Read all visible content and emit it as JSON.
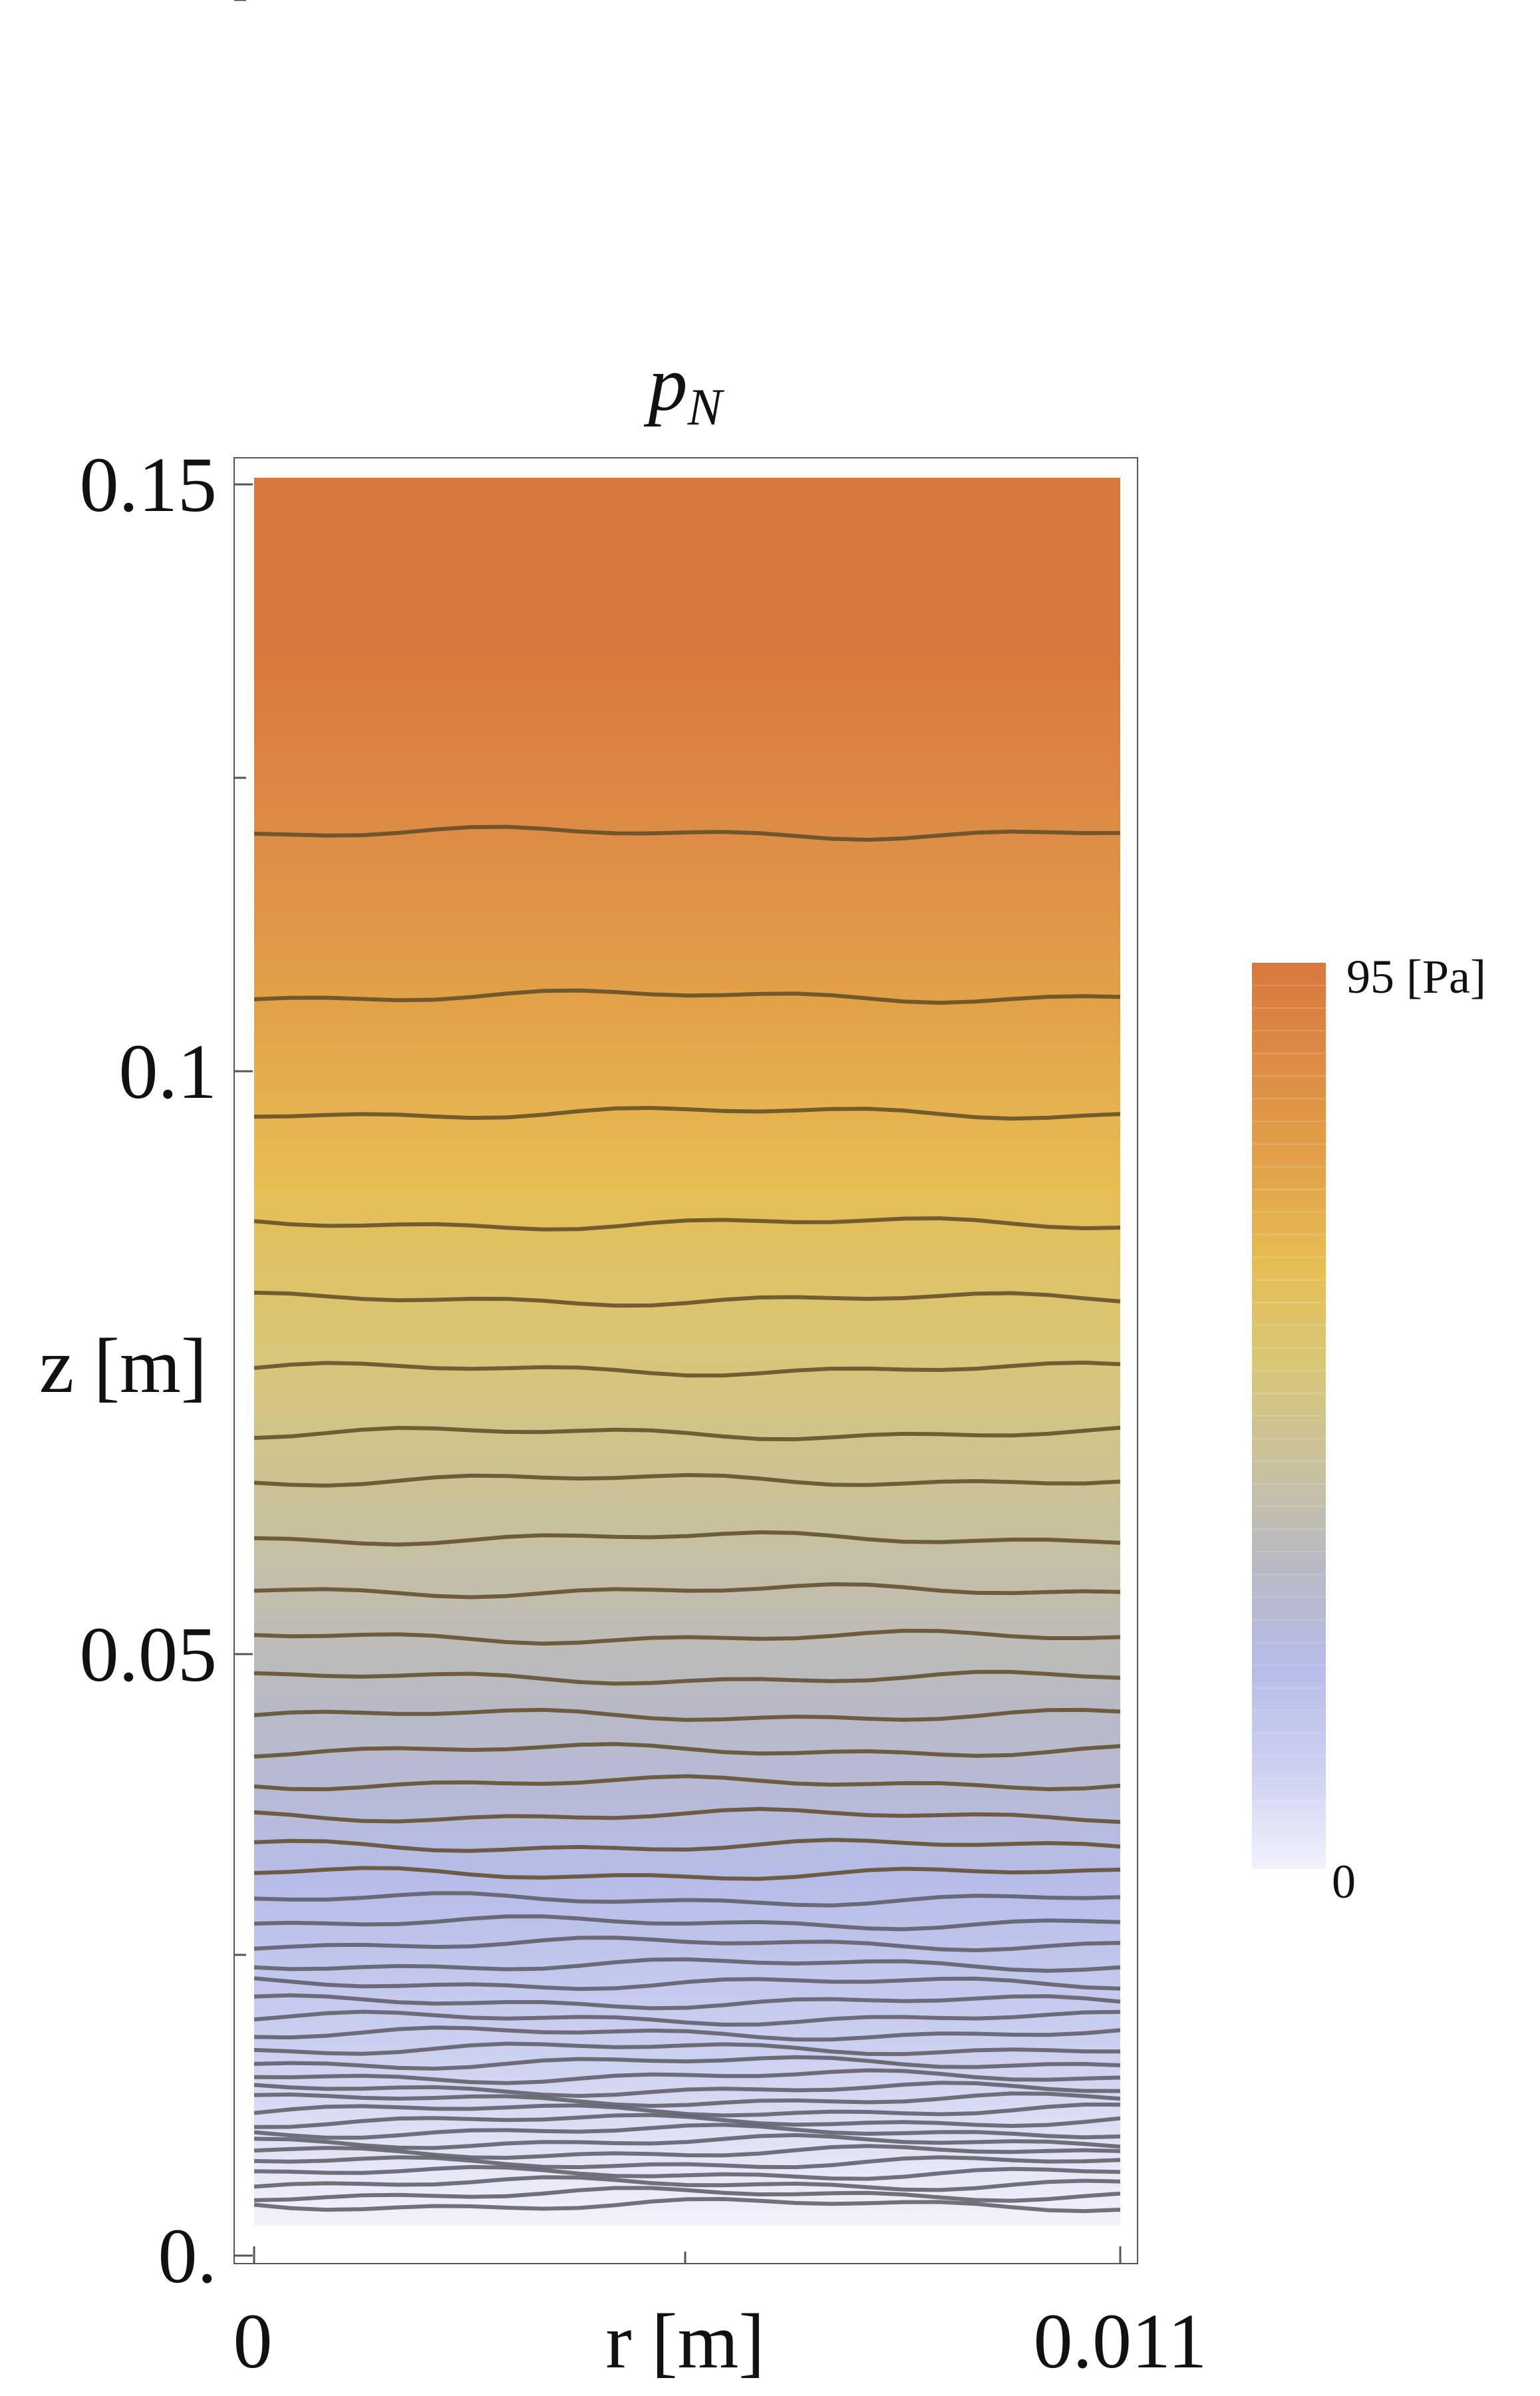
{
  "chart_data": {
    "type": "heatmap",
    "subtype": "contour",
    "title": "p",
    "title_subscript": "N",
    "xlabel": "r [m]",
    "ylabel": "z [m]",
    "xlim": [
      0,
      0.011
    ],
    "ylim": [
      0,
      0.15
    ],
    "x_ticks": [
      "0",
      "0.011"
    ],
    "y_ticks": [
      "0.",
      "0.05",
      "0.1",
      "0.15"
    ],
    "colorbar": {
      "max_label": "95 [Pa]",
      "min_label": "0",
      "min": 0,
      "max": 95,
      "unit": "Pa",
      "placement": "right",
      "colors": [
        "#f2f2fb",
        "#ccd0f0",
        "#b6bce8",
        "#b8b9c4",
        "#c8c19e",
        "#d8c778",
        "#e6bd52",
        "#e2a148",
        "#dd8c45",
        "#d8783e"
      ]
    },
    "contour_levels_z": [
      0.0018,
      0.0027,
      0.0036,
      0.0045,
      0.0054,
      0.0063,
      0.0072,
      0.0081,
      0.009,
      0.0099,
      0.0108,
      0.0117,
      0.0128,
      0.014,
      0.0152,
      0.0165,
      0.0178,
      0.0192,
      0.0208,
      0.0224,
      0.0242,
      0.026,
      0.028,
      0.0302,
      0.0326,
      0.0352,
      0.038,
      0.0408,
      0.0438,
      0.047,
      0.0505,
      0.0545,
      0.059,
      0.064,
      0.068,
      0.0735,
      0.0795,
      0.086,
      0.0955,
      0.1055,
      0.1195
    ],
    "grid": false
  }
}
